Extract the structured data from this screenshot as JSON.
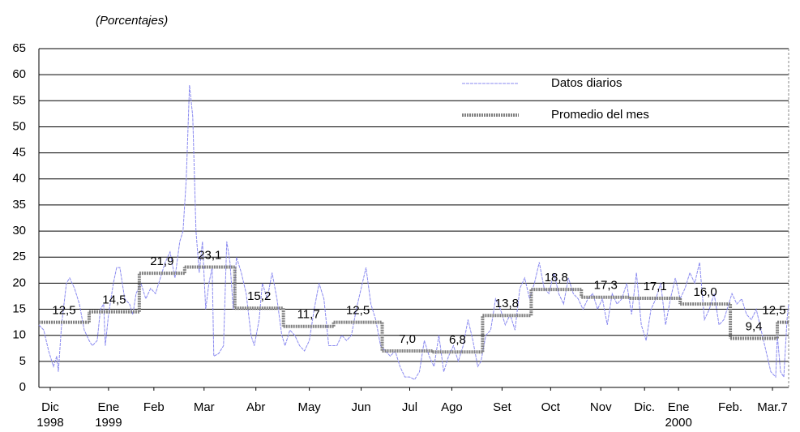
{
  "chart_data": {
    "type": "line",
    "subtitle": "(Porcentajes)",
    "xlim": [
      0,
      463
    ],
    "xticks": [
      {
        "value": 7,
        "label": "Dic 1998"
      },
      {
        "value": 43,
        "label": "Ene 1999"
      },
      {
        "value": 71,
        "label": "Feb"
      },
      {
        "value": 102,
        "label": "Mar"
      },
      {
        "value": 134,
        "label": "Abr"
      },
      {
        "value": 167,
        "label": "May"
      },
      {
        "value": 199,
        "label": "Jun"
      },
      {
        "value": 229,
        "label": "Jul"
      },
      {
        "value": 255,
        "label": "Ago"
      },
      {
        "value": 286,
        "label": "Set"
      },
      {
        "value": 316,
        "label": "Oct"
      },
      {
        "value": 347,
        "label": "Nov"
      },
      {
        "value": 374,
        "label": "Dic."
      },
      {
        "value": 395,
        "label": "Ene 2000"
      },
      {
        "value": 427,
        "label": "Feb."
      },
      {
        "value": 453,
        "label": "Mar.7"
      }
    ],
    "ylim": [
      0,
      65
    ],
    "yticks": [
      0,
      5,
      10,
      15,
      20,
      25,
      30,
      35,
      40,
      45,
      50,
      55,
      60,
      65
    ],
    "grid": true,
    "legend": "top-right",
    "series": [
      {
        "name": "Datos diarios",
        "color": "#8a8af0",
        "x": [
          0,
          3,
          6,
          9,
          11,
          12,
          14,
          17,
          19,
          22,
          25,
          28,
          31,
          33,
          36,
          38,
          40,
          41,
          43,
          46,
          48,
          50,
          53,
          56,
          58,
          60,
          63,
          66,
          69,
          72,
          75,
          78,
          81,
          84,
          87,
          89,
          91,
          93,
          95,
          97,
          99,
          101,
          103,
          105,
          107,
          108,
          111,
          114,
          116,
          118,
          120,
          122,
          125,
          128,
          131,
          133,
          136,
          138,
          141,
          144,
          147,
          150,
          152,
          155,
          158,
          161,
          164,
          167,
          170,
          173,
          176,
          179,
          181,
          184,
          187,
          190,
          193,
          196,
          199,
          202,
          205,
          208,
          211,
          214,
          217,
          220,
          223,
          226,
          229,
          232,
          235,
          238,
          241,
          244,
          247,
          250,
          253,
          256,
          259,
          262,
          265,
          268,
          271,
          273,
          276,
          279,
          282,
          285,
          288,
          291,
          294,
          297,
          300,
          303,
          306,
          309,
          312,
          315,
          318,
          321,
          324,
          327,
          330,
          333,
          336,
          339,
          342,
          345,
          348,
          351,
          354,
          357,
          360,
          363,
          366,
          369,
          372,
          375,
          378,
          381,
          384,
          387,
          390,
          393,
          396,
          399,
          402,
          405,
          408,
          411,
          414,
          417,
          420,
          423,
          426,
          428,
          431,
          434,
          437,
          440,
          443,
          446,
          449,
          452,
          455,
          456,
          458,
          460,
          462,
          463
        ],
        "values": [
          12,
          11,
          7,
          4,
          6,
          3,
          12,
          20,
          21,
          19,
          16,
          11,
          9,
          8,
          9,
          15,
          16,
          8,
          14,
          20,
          23,
          23,
          17,
          16,
          14,
          18,
          20,
          17,
          19,
          18,
          21,
          24,
          26,
          21,
          28,
          30,
          40,
          58,
          52,
          30,
          22,
          28,
          15,
          20,
          23,
          6,
          6.5,
          8,
          28,
          24,
          15,
          25,
          22,
          18,
          10,
          8,
          13,
          20,
          17,
          22,
          17,
          10,
          8,
          11,
          10,
          8,
          7,
          9,
          15,
          20,
          17,
          8,
          8,
          8,
          10,
          9,
          10,
          15,
          19,
          23,
          16,
          13,
          8,
          7,
          6,
          7,
          4,
          2,
          2,
          1.5,
          3,
          9,
          6,
          4,
          10,
          3,
          6,
          8,
          5,
          8,
          13,
          9,
          4,
          5,
          10,
          11,
          17,
          15,
          12,
          14,
          11,
          19,
          21,
          17,
          20,
          24,
          19,
          18,
          22,
          18,
          16,
          21,
          18,
          17,
          15,
          17,
          18,
          15,
          17,
          12,
          18,
          16,
          17,
          20,
          14,
          22,
          12,
          9,
          15,
          17,
          20,
          12,
          17,
          21,
          17,
          19,
          22,
          20,
          24,
          13,
          15,
          18,
          12,
          13,
          16,
          18,
          16,
          17,
          14,
          13,
          15,
          11,
          7,
          3,
          2,
          10,
          3,
          2,
          13,
          16
        ]
      },
      {
        "name": "Promedio del mes",
        "color": "#808080",
        "step": true,
        "x": [
          0,
          31,
          62,
          90,
          121,
          151,
          182,
          212,
          243,
          274,
          304,
          335,
          365,
          396,
          427,
          456
        ],
        "values": [
          12.5,
          14.5,
          21.9,
          23.1,
          15.2,
          11.7,
          12.5,
          7.0,
          6.8,
          13.8,
          18.8,
          17.3,
          17.1,
          16.0,
          9.4,
          12.5
        ],
        "value_labels": [
          "12,5",
          "14,5",
          "21,9",
          "23,1",
          "15,2",
          "11,7",
          "12,5",
          "7,0",
          "6,8",
          "13,8",
          "18,8",
          "17,3",
          "17,1",
          "16,0",
          "9,4",
          "12,5"
        ]
      }
    ]
  }
}
